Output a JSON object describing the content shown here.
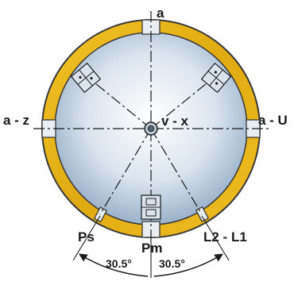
{
  "labels": {
    "top": "a",
    "left": "a - z",
    "right": "a - U",
    "center": "v - x",
    "bottom_left": "Ps",
    "bottom_center": "Pm",
    "bottom_right": "L2 - L1"
  },
  "angles": {
    "left": "30.5°",
    "right": "30.5°"
  },
  "colors": {
    "ring": "#e6b419",
    "ring_outline": "#3a3a3a",
    "disc_center": "#ffffff",
    "disc_edge": "#9bb3cb",
    "slot": "#e9eef3"
  }
}
